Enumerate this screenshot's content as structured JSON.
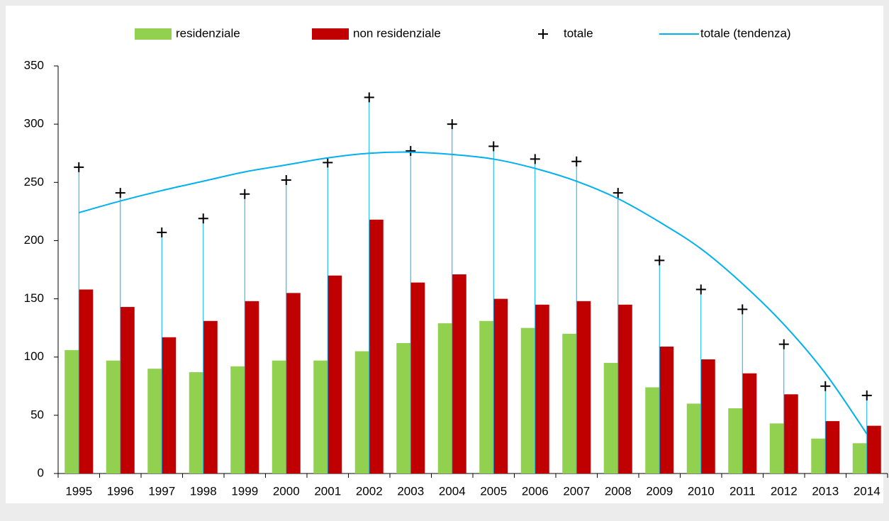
{
  "chart_data": {
    "type": "bar",
    "categories": [
      "1995",
      "1996",
      "1997",
      "1998",
      "1999",
      "2000",
      "2001",
      "2002",
      "2003",
      "2004",
      "2005",
      "2006",
      "2007",
      "2008",
      "2009",
      "2010",
      "2011",
      "2012",
      "2013",
      "2014"
    ],
    "series": [
      {
        "name": "residenziale",
        "type": "bar",
        "color": "#92d050",
        "values": [
          106,
          97,
          90,
          87,
          92,
          97,
          97,
          105,
          112,
          129,
          131,
          125,
          120,
          95,
          74,
          60,
          56,
          43,
          30,
          26
        ]
      },
      {
        "name": "non residenziale",
        "type": "bar",
        "color": "#c00000",
        "values": [
          158,
          143,
          117,
          131,
          148,
          155,
          170,
          218,
          164,
          171,
          150,
          145,
          148,
          145,
          109,
          98,
          86,
          68,
          45,
          41
        ]
      },
      {
        "name": "totale",
        "type": "scatter",
        "marker": "+",
        "drop_lines": true,
        "color": "#000000",
        "drop_color": "#00b0f0",
        "values": [
          263,
          241,
          207,
          219,
          240,
          252,
          267,
          323,
          277,
          300,
          281,
          270,
          268,
          241,
          183,
          158,
          141,
          111,
          75,
          67
        ]
      },
      {
        "name": "totale (tendenza)",
        "type": "line",
        "color": "#00b0f0",
        "values": [
          224,
          234,
          243,
          251,
          259,
          265,
          271,
          275,
          276,
          274,
          270,
          262,
          251,
          236,
          216,
          193,
          163,
          128,
          86,
          34
        ]
      }
    ],
    "ylim": [
      0,
      350
    ],
    "yticks": [
      0,
      50,
      100,
      150,
      200,
      250,
      300,
      350
    ],
    "grid": false,
    "legend": "top"
  }
}
